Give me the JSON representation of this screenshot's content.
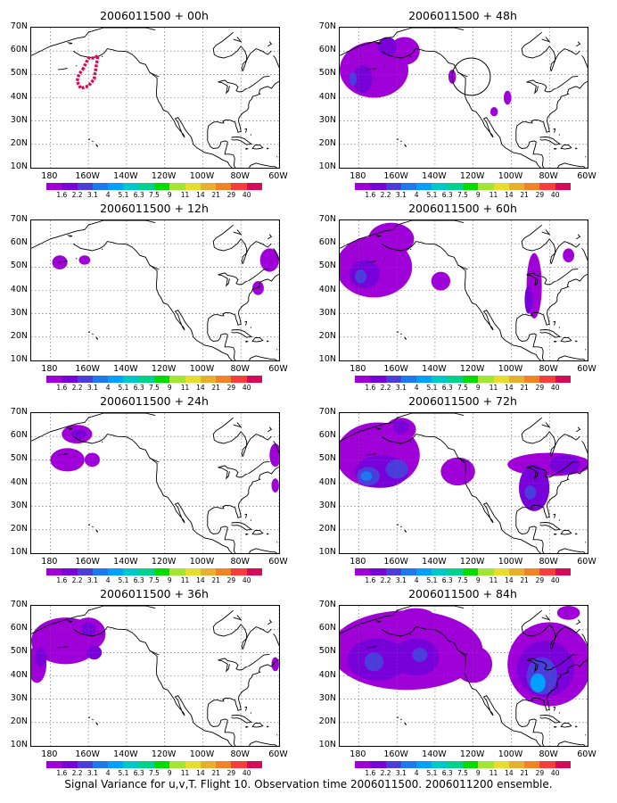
{
  "footer": "Signal Variance for u,v,T. Flight 10. Observation time 2006011500. 2006011200 ensemble.",
  "colorbar": {
    "labels": [
      "1.6",
      "2.2",
      "3.1",
      "4",
      "5.1",
      "6.3",
      "7.5",
      "9",
      "11",
      "14",
      "21",
      "29",
      "40"
    ],
    "colors": [
      "#a000d8",
      "#7800d8",
      "#4b3cdc",
      "#1e78f0",
      "#00a0ff",
      "#00c8c8",
      "#00d28c",
      "#00dc00",
      "#a0e632",
      "#e6dc32",
      "#e6af2d",
      "#f08228",
      "#fa3c3c",
      "#d70a5a"
    ]
  },
  "chart_data": [
    {
      "type": "heatmap",
      "title": "2006011500 + 00h",
      "x_ticks": [
        "180",
        "160W",
        "140W",
        "120W",
        "100W",
        "80W",
        "60W"
      ],
      "y_ticks": [
        "10N",
        "20N",
        "30N",
        "40N",
        "50N",
        "60N",
        "70N"
      ],
      "xlim": [
        -190,
        -60
      ],
      "ylim": [
        10,
        70
      ],
      "features": [
        {
          "kind": "ring",
          "color": "#d70a5a",
          "points": [
            [
              -163,
              52
            ],
            [
              -160,
              57
            ],
            [
              -157,
              57
            ],
            [
              -155,
              58
            ],
            [
              -156,
              53
            ],
            [
              -157,
              48
            ],
            [
              -160,
              45
            ],
            [
              -164,
              44
            ],
            [
              -166,
              47
            ],
            [
              -165,
              50
            ],
            [
              -163,
              52
            ]
          ]
        }
      ]
    },
    {
      "type": "heatmap",
      "title": "2006011500 + 12h",
      "x_ticks": [
        "180",
        "160W",
        "140W",
        "120W",
        "100W",
        "80W",
        "60W"
      ],
      "y_ticks": [
        "10N",
        "20N",
        "30N",
        "40N",
        "50N",
        "60N",
        "70N"
      ],
      "xlim": [
        -190,
        -60
      ],
      "ylim": [
        10,
        70
      ],
      "features": [
        {
          "kind": "blob",
          "lon": -175,
          "lat": 52,
          "rx": 4,
          "ry": 3,
          "level": 0
        },
        {
          "kind": "blob",
          "lon": -162,
          "lat": 53,
          "rx": 3,
          "ry": 2,
          "level": 0
        },
        {
          "kind": "blob",
          "lon": -65,
          "lat": 53,
          "rx": 5,
          "ry": 5,
          "level": 0
        },
        {
          "kind": "blob",
          "lon": -71,
          "lat": 41,
          "rx": 3,
          "ry": 3,
          "level": 0
        }
      ]
    },
    {
      "type": "heatmap",
      "title": "2006011500 + 24h",
      "x_ticks": [
        "180",
        "160W",
        "140W",
        "120W",
        "100W",
        "80W",
        "60W"
      ],
      "y_ticks": [
        "10N",
        "20N",
        "30N",
        "40N",
        "50N",
        "60N",
        "70N"
      ],
      "xlim": [
        -190,
        -60
      ],
      "ylim": [
        10,
        70
      ],
      "features": [
        {
          "kind": "blob",
          "lon": -166,
          "lat": 61,
          "rx": 8,
          "ry": 4,
          "level": 0
        },
        {
          "kind": "blob",
          "lon": -165,
          "lat": 61,
          "rx": 4,
          "ry": 2,
          "level": 1
        },
        {
          "kind": "blob",
          "lon": -171,
          "lat": 50,
          "rx": 9,
          "ry": 5,
          "level": 0
        },
        {
          "kind": "blob",
          "lon": -158,
          "lat": 50,
          "rx": 4,
          "ry": 3,
          "level": 0
        },
        {
          "kind": "blob",
          "lon": -62,
          "lat": 52,
          "rx": 3,
          "ry": 5,
          "level": 0
        },
        {
          "kind": "blob",
          "lon": -62,
          "lat": 39,
          "rx": 2,
          "ry": 3,
          "level": 0
        }
      ]
    },
    {
      "type": "heatmap",
      "title": "2006011500 + 36h",
      "x_ticks": [
        "180",
        "160W",
        "140W",
        "120W",
        "100W",
        "80W",
        "60W"
      ],
      "y_ticks": [
        "10N",
        "20N",
        "30N",
        "40N",
        "50N",
        "60N",
        "70N"
      ],
      "xlim": [
        -190,
        -60
      ],
      "ylim": [
        10,
        70
      ],
      "features": [
        {
          "kind": "blob",
          "lon": -172,
          "lat": 55,
          "rx": 18,
          "ry": 10,
          "level": 0
        },
        {
          "kind": "blob",
          "lon": -160,
          "lat": 58,
          "rx": 9,
          "ry": 7,
          "level": 0
        },
        {
          "kind": "blob",
          "lon": -160,
          "lat": 60,
          "rx": 4,
          "ry": 3,
          "level": 1
        },
        {
          "kind": "blob",
          "lon": -187,
          "lat": 45,
          "rx": 5,
          "ry": 8,
          "level": 0
        },
        {
          "kind": "blob",
          "lon": -157,
          "lat": 50,
          "rx": 4,
          "ry": 3,
          "level": 1
        },
        {
          "kind": "blob",
          "lon": -185,
          "lat": 48,
          "rx": 3,
          "ry": 4,
          "level": 1
        },
        {
          "kind": "blob",
          "lon": -62,
          "lat": 45,
          "rx": 2,
          "ry": 3,
          "level": 0
        }
      ]
    },
    {
      "type": "heatmap",
      "title": "2006011500 + 48h",
      "x_ticks": [
        "180",
        "160W",
        "140W",
        "120W",
        "100W",
        "80W",
        "60W"
      ],
      "y_ticks": [
        "10N",
        "20N",
        "30N",
        "40N",
        "50N",
        "60N",
        "70N"
      ],
      "xlim": [
        -190,
        -60
      ],
      "ylim": [
        10,
        70
      ],
      "features": [
        {
          "kind": "blob",
          "lon": -172,
          "lat": 52,
          "rx": 18,
          "ry": 12,
          "level": 0
        },
        {
          "kind": "blob",
          "lon": -156,
          "lat": 60,
          "rx": 8,
          "ry": 6,
          "level": 0
        },
        {
          "kind": "blob",
          "lon": -178,
          "lat": 48,
          "rx": 5,
          "ry": 6,
          "level": 1
        },
        {
          "kind": "blob",
          "lon": -165,
          "lat": 62,
          "rx": 5,
          "ry": 4,
          "level": 1
        },
        {
          "kind": "blob",
          "lon": -183,
          "lat": 48,
          "rx": 2,
          "ry": 3,
          "level": 2
        },
        {
          "kind": "blob",
          "lon": -131,
          "lat": 49,
          "rx": 2,
          "ry": 3,
          "level": 0
        },
        {
          "kind": "blob",
          "lon": -102,
          "lat": 40,
          "rx": 2,
          "ry": 3,
          "level": 0
        },
        {
          "kind": "blob",
          "lon": -109,
          "lat": 34,
          "rx": 2,
          "ry": 2,
          "level": 0
        },
        {
          "kind": "ellipse",
          "lon": -121,
          "lat": 49,
          "rx": 10,
          "ry": 8
        }
      ]
    },
    {
      "type": "heatmap",
      "title": "2006011500 + 60h",
      "x_ticks": [
        "180",
        "160W",
        "140W",
        "120W",
        "100W",
        "80W",
        "60W"
      ],
      "y_ticks": [
        "10N",
        "20N",
        "30N",
        "40N",
        "50N",
        "60N",
        "70N"
      ],
      "xlim": [
        -190,
        -60
      ],
      "ylim": [
        10,
        70
      ],
      "features": [
        {
          "kind": "blob",
          "lon": -172,
          "lat": 50,
          "rx": 20,
          "ry": 13,
          "level": 0
        },
        {
          "kind": "blob",
          "lon": -163,
          "lat": 62,
          "rx": 12,
          "ry": 7,
          "level": 0
        },
        {
          "kind": "blob",
          "lon": -177,
          "lat": 47,
          "rx": 8,
          "ry": 6,
          "level": 1
        },
        {
          "kind": "blob",
          "lon": -179,
          "lat": 46,
          "rx": 3,
          "ry": 3,
          "level": 2
        },
        {
          "kind": "blob",
          "lon": -137,
          "lat": 44,
          "rx": 5,
          "ry": 4,
          "level": 0
        },
        {
          "kind": "blob",
          "lon": -88,
          "lat": 42,
          "rx": 4,
          "ry": 14,
          "level": 0
        },
        {
          "kind": "blob",
          "lon": -91,
          "lat": 36,
          "rx": 2,
          "ry": 6,
          "level": 1
        },
        {
          "kind": "blob",
          "lon": -70,
          "lat": 55,
          "rx": 3,
          "ry": 3,
          "level": 0
        }
      ]
    },
    {
      "type": "heatmap",
      "title": "2006011500 + 72h",
      "x_ticks": [
        "180",
        "160W",
        "140W",
        "120W",
        "100W",
        "80W",
        "60W"
      ],
      "y_ticks": [
        "10N",
        "20N",
        "30N",
        "40N",
        "50N",
        "60N",
        "70N"
      ],
      "xlim": [
        -190,
        -60
      ],
      "ylim": [
        10,
        70
      ],
      "features": [
        {
          "kind": "blob",
          "lon": -170,
          "lat": 52,
          "rx": 22,
          "ry": 14,
          "level": 0
        },
        {
          "kind": "blob",
          "lon": -168,
          "lat": 45,
          "rx": 14,
          "ry": 7,
          "level": 1
        },
        {
          "kind": "blob",
          "lon": -175,
          "lat": 43,
          "rx": 6,
          "ry": 4,
          "level": 2
        },
        {
          "kind": "blob",
          "lon": -160,
          "lat": 46,
          "rx": 6,
          "ry": 4,
          "level": 2
        },
        {
          "kind": "blob",
          "lon": -176,
          "lat": 43,
          "rx": 3,
          "ry": 2,
          "level": 3
        },
        {
          "kind": "blob",
          "lon": -158,
          "lat": 63,
          "rx": 8,
          "ry": 5,
          "level": 0
        },
        {
          "kind": "blob",
          "lon": -158,
          "lat": 64,
          "rx": 4,
          "ry": 3,
          "level": 1
        },
        {
          "kind": "blob",
          "lon": -128,
          "lat": 45,
          "rx": 9,
          "ry": 6,
          "level": 0
        },
        {
          "kind": "blob",
          "lon": -80,
          "lat": 48,
          "rx": 22,
          "ry": 5,
          "level": 0
        },
        {
          "kind": "blob",
          "lon": -88,
          "lat": 38,
          "rx": 8,
          "ry": 10,
          "level": 1
        },
        {
          "kind": "blob",
          "lon": -90,
          "lat": 36,
          "rx": 3,
          "ry": 3,
          "level": 2
        },
        {
          "kind": "blob",
          "lon": -72,
          "lat": 48,
          "rx": 8,
          "ry": 4,
          "level": 1
        }
      ]
    },
    {
      "type": "heatmap",
      "title": "2006011500 + 84h",
      "x_ticks": [
        "180",
        "160W",
        "140W",
        "120W",
        "100W",
        "80W",
        "60W"
      ],
      "y_ticks": [
        "10N",
        "20N",
        "30N",
        "40N",
        "50N",
        "60N",
        "70N"
      ],
      "xlim": [
        -190,
        -60
      ],
      "ylim": [
        10,
        70
      ],
      "features": [
        {
          "kind": "blob",
          "lon": -155,
          "lat": 51,
          "rx": 40,
          "ry": 17,
          "level": 0
        },
        {
          "kind": "blob",
          "lon": -170,
          "lat": 47,
          "rx": 16,
          "ry": 9,
          "level": 1
        },
        {
          "kind": "blob",
          "lon": -150,
          "lat": 48,
          "rx": 12,
          "ry": 8,
          "level": 1
        },
        {
          "kind": "blob",
          "lon": -172,
          "lat": 46,
          "rx": 5,
          "ry": 4,
          "level": 2
        },
        {
          "kind": "blob",
          "lon": -148,
          "lat": 49,
          "rx": 4,
          "ry": 3,
          "level": 2
        },
        {
          "kind": "blob",
          "lon": -150,
          "lat": 65,
          "rx": 10,
          "ry": 4,
          "level": 0
        },
        {
          "kind": "blob",
          "lon": -120,
          "lat": 45,
          "rx": 10,
          "ry": 8,
          "level": 0
        },
        {
          "kind": "blob",
          "lon": -80,
          "lat": 45,
          "rx": 22,
          "ry": 18,
          "level": 0
        },
        {
          "kind": "blob",
          "lon": -82,
          "lat": 43,
          "rx": 15,
          "ry": 12,
          "level": 1
        },
        {
          "kind": "blob",
          "lon": -84,
          "lat": 40,
          "rx": 8,
          "ry": 8,
          "level": 2
        },
        {
          "kind": "blob",
          "lon": -86,
          "lat": 37,
          "rx": 4,
          "ry": 4,
          "level": 4
        },
        {
          "kind": "blob",
          "lon": -70,
          "lat": 67,
          "rx": 6,
          "ry": 3,
          "level": 0
        }
      ]
    }
  ]
}
